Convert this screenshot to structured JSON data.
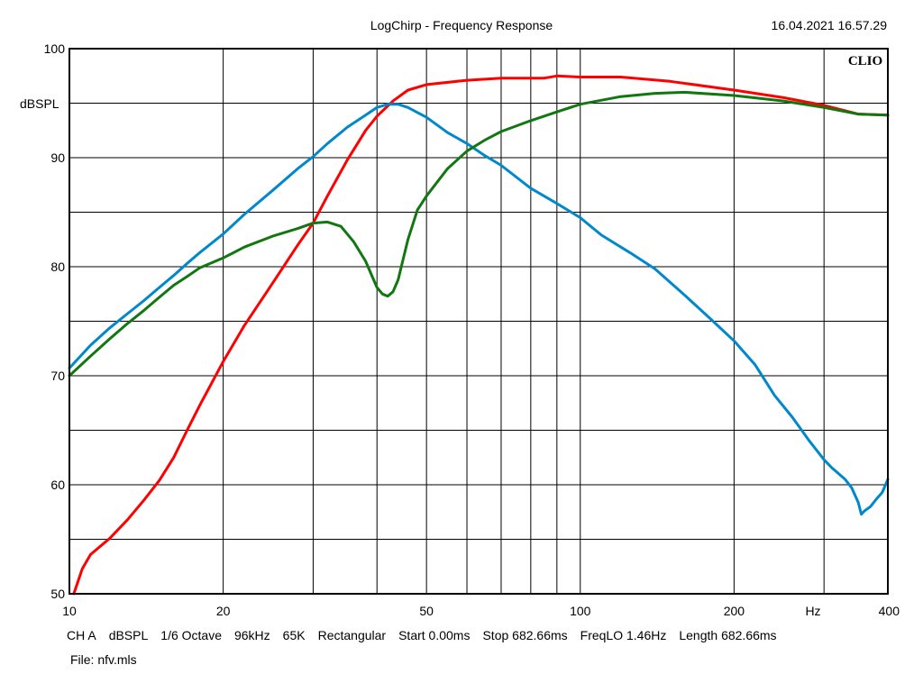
{
  "header": {
    "title": "LogChirp - Frequency Response",
    "timestamp": "16.04.2021 16.57.29",
    "brand": "CLIO"
  },
  "chart_data": {
    "type": "line",
    "x_scale": "log",
    "xlim": [
      10,
      400
    ],
    "ylim": [
      50,
      100
    ],
    "ylabel": "dBSPL",
    "xlabel": "Hz",
    "grid": true,
    "x_ticks": [
      {
        "value": 10,
        "label": "10"
      },
      {
        "value": 20,
        "label": "20"
      },
      {
        "value": 50,
        "label": "50"
      },
      {
        "value": 100,
        "label": "100"
      },
      {
        "value": 200,
        "label": "200"
      },
      {
        "value": 400,
        "label": "400"
      }
    ],
    "y_ticks": [
      {
        "value": 50,
        "label": "50"
      },
      {
        "value": 60,
        "label": "60"
      },
      {
        "value": 70,
        "label": "70"
      },
      {
        "value": 80,
        "label": "80"
      },
      {
        "value": 90,
        "label": "90"
      },
      {
        "value": 100,
        "label": "100"
      }
    ],
    "series": [
      {
        "color": "#ff0000",
        "points": [
          [
            10.2,
            50
          ],
          [
            10.6,
            52.3
          ],
          [
            11,
            53.6
          ],
          [
            12,
            55.1
          ],
          [
            13,
            56.8
          ],
          [
            14,
            58.6
          ],
          [
            15,
            60.4
          ],
          [
            16,
            62.5
          ],
          [
            17,
            65
          ],
          [
            18,
            67.3
          ],
          [
            20,
            71.3
          ],
          [
            22,
            74.6
          ],
          [
            25,
            78.5
          ],
          [
            28,
            82
          ],
          [
            30,
            84
          ],
          [
            32,
            86.5
          ],
          [
            35,
            89.8
          ],
          [
            38,
            92.5
          ],
          [
            40,
            93.8
          ],
          [
            43,
            95.2
          ],
          [
            46,
            96.2
          ],
          [
            50,
            96.7
          ],
          [
            60,
            97.1
          ],
          [
            70,
            97.3
          ],
          [
            85,
            97.3
          ],
          [
            90,
            97.5
          ],
          [
            100,
            97.4
          ],
          [
            120,
            97.4
          ],
          [
            150,
            97.0
          ],
          [
            200,
            96.2
          ],
          [
            250,
            95.5
          ],
          [
            300,
            94.8
          ],
          [
            350,
            94.0
          ],
          [
            400,
            93.9
          ]
        ]
      },
      {
        "color": "#0088cc",
        "points": [
          [
            10,
            70.7
          ],
          [
            11,
            72.8
          ],
          [
            12,
            74.4
          ],
          [
            13,
            75.7
          ],
          [
            14,
            76.9
          ],
          [
            15,
            78.1
          ],
          [
            16,
            79.2
          ],
          [
            17,
            80.3
          ],
          [
            18,
            81.3
          ],
          [
            20,
            83
          ],
          [
            22,
            84.8
          ],
          [
            25,
            87
          ],
          [
            28,
            89
          ],
          [
            30,
            90.1
          ],
          [
            32,
            91.3
          ],
          [
            35,
            92.8
          ],
          [
            38,
            93.9
          ],
          [
            40,
            94.6
          ],
          [
            42,
            94.9
          ],
          [
            44,
            94.9
          ],
          [
            46,
            94.6
          ],
          [
            50,
            93.7
          ],
          [
            55,
            92.3
          ],
          [
            60,
            91.3
          ],
          [
            65,
            90.2
          ],
          [
            70,
            89.3
          ],
          [
            80,
            87.2
          ],
          [
            90,
            85.8
          ],
          [
            100,
            84.5
          ],
          [
            110,
            82.9
          ],
          [
            125,
            81.3
          ],
          [
            140,
            79.8
          ],
          [
            160,
            77.4
          ],
          [
            180,
            75.2
          ],
          [
            200,
            73.2
          ],
          [
            220,
            71
          ],
          [
            240,
            68.2
          ],
          [
            260,
            66.2
          ],
          [
            280,
            64.1
          ],
          [
            300,
            62.3
          ],
          [
            310,
            61.6
          ],
          [
            330,
            60.5
          ],
          [
            340,
            59.7
          ],
          [
            350,
            58.4
          ],
          [
            355,
            57.3
          ],
          [
            360,
            57.6
          ],
          [
            370,
            58.0
          ],
          [
            380,
            58.7
          ],
          [
            390,
            59.3
          ],
          [
            400,
            60.5
          ]
        ]
      },
      {
        "color": "#117711",
        "points": [
          [
            10,
            70.0
          ],
          [
            11,
            71.8
          ],
          [
            12,
            73.4
          ],
          [
            13,
            74.8
          ],
          [
            14,
            76.0
          ],
          [
            15,
            77.2
          ],
          [
            16,
            78.3
          ],
          [
            17,
            79.1
          ],
          [
            18,
            79.9
          ],
          [
            20,
            80.8
          ],
          [
            22,
            81.8
          ],
          [
            25,
            82.8
          ],
          [
            28,
            83.5
          ],
          [
            30,
            84.0
          ],
          [
            32,
            84.1
          ],
          [
            34,
            83.7
          ],
          [
            36,
            82.3
          ],
          [
            38,
            80.5
          ],
          [
            40,
            78.1
          ],
          [
            41,
            77.5
          ],
          [
            42,
            77.3
          ],
          [
            43,
            77.7
          ],
          [
            44,
            78.8
          ],
          [
            46,
            82.5
          ],
          [
            48,
            85.2
          ],
          [
            50,
            86.5
          ],
          [
            55,
            89
          ],
          [
            60,
            90.6
          ],
          [
            65,
            91.6
          ],
          [
            70,
            92.4
          ],
          [
            80,
            93.4
          ],
          [
            90,
            94.2
          ],
          [
            100,
            94.9
          ],
          [
            120,
            95.6
          ],
          [
            140,
            95.9
          ],
          [
            160,
            96.0
          ],
          [
            200,
            95.7
          ],
          [
            250,
            95.2
          ],
          [
            300,
            94.6
          ],
          [
            350,
            94.0
          ],
          [
            400,
            93.9
          ]
        ]
      }
    ]
  },
  "footer": {
    "line1": [
      "CH A",
      "dBSPL",
      "1/6 Octave",
      "96kHz",
      "65K",
      "Rectangular",
      "Start 0.00ms",
      "Stop 682.66ms",
      "FreqLO 1.46Hz",
      "Length 682.66ms"
    ],
    "file": "File: nfv.mls"
  }
}
